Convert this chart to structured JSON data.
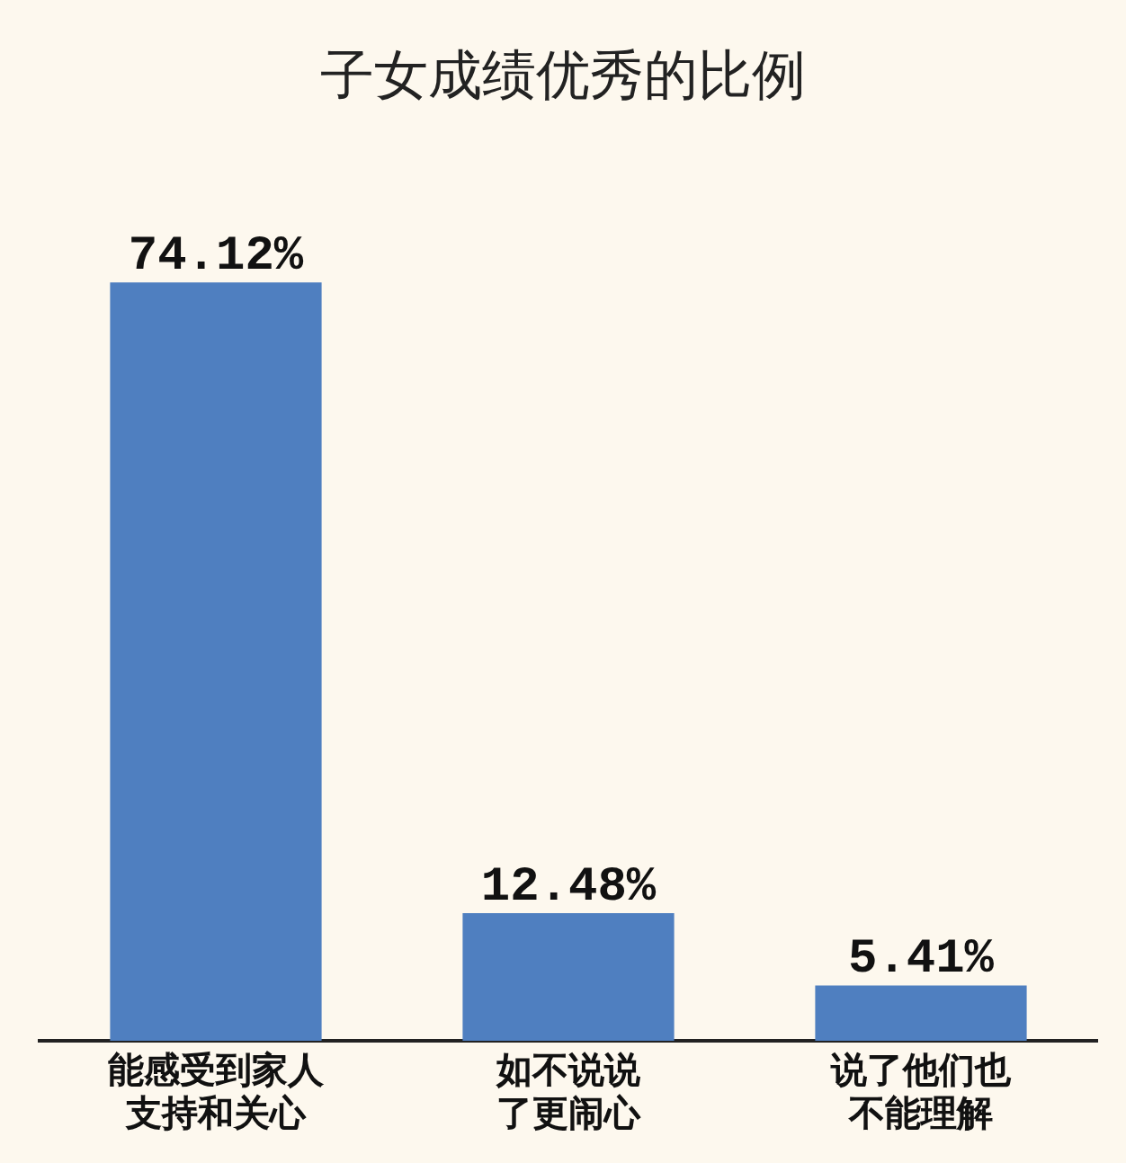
{
  "chart_data": {
    "type": "bar",
    "title": "子女成绩优秀的比例",
    "categories": [
      "能感受到家人支持和关心",
      "如不说说了更闹心",
      "说了他们也不能理解"
    ],
    "values": [
      74.12,
      12.48,
      5.41
    ],
    "value_labels": [
      "74.12%",
      "12.48%",
      "5.41%"
    ],
    "color": "#4f7fc0",
    "grid": false,
    "legend": false
  }
}
